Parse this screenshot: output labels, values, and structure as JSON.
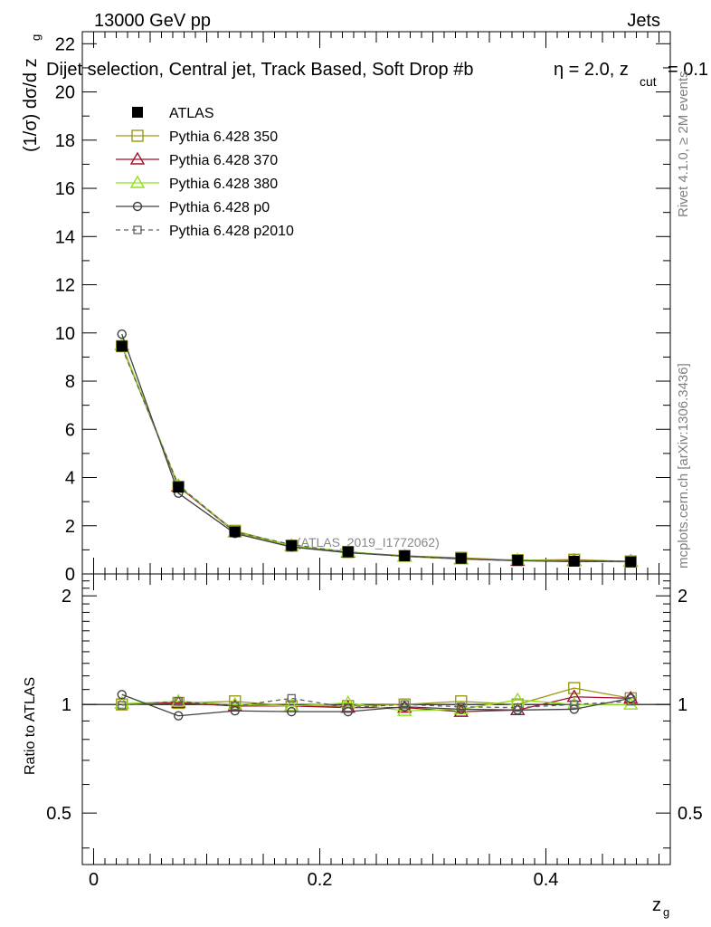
{
  "header": {
    "left": "13000 GeV pp",
    "right": "Jets"
  },
  "title": "Dijet selection, Central jet, Track Based, Soft Drop #b",
  "title_params": {
    "eta": "η = 2.0, z",
    "cut_sub": "cut",
    "zcut_value": "= 0.1"
  },
  "watermarks": {
    "rivet": "Rivet 4.1.0, ≥ 2M events",
    "mcplots": "mcplots.cern.ch [arXiv:1306.3436]",
    "analysis": "(ATLAS_2019_I1772062)"
  },
  "chart_data": [
    {
      "type": "line",
      "panel": "main",
      "ylabel": "(1/σ) dσ/d z",
      "ylabel_sub": "g",
      "ylim": [
        0,
        22.5
      ],
      "yticks": [
        0,
        2,
        4,
        6,
        8,
        10,
        12,
        14,
        16,
        18,
        20,
        22
      ],
      "ytick_labels": [
        "0",
        "2",
        "4",
        "6",
        "8",
        "10",
        "12",
        "14",
        "16",
        "18",
        "20",
        "22"
      ],
      "x": [
        0.025,
        0.075,
        0.125,
        0.175,
        0.225,
        0.275,
        0.325,
        0.375,
        0.425,
        0.475
      ],
      "series": [
        {
          "name": "ATLAS",
          "color": "#000000",
          "marker": "filled-square",
          "line": "none",
          "values": [
            9.45,
            3.6,
            1.75,
            1.18,
            0.92,
            0.75,
            0.65,
            0.57,
            0.53,
            0.5
          ]
        },
        {
          "name": "Pythia 6.428 350",
          "color": "#9a9a1a",
          "marker": "open-square",
          "line": "solid",
          "values": [
            9.45,
            3.62,
            1.79,
            1.17,
            0.91,
            0.75,
            0.67,
            0.57,
            0.59,
            0.52
          ]
        },
        {
          "name": "Pythia 6.428 370",
          "color": "#a50f2d",
          "marker": "open-triangle",
          "line": "solid",
          "values": [
            9.5,
            3.63,
            1.74,
            1.17,
            0.9,
            0.73,
            0.62,
            0.55,
            0.55,
            0.52
          ]
        },
        {
          "name": "Pythia 6.428 380",
          "color": "#90e020",
          "marker": "open-triangle",
          "line": "solid",
          "values": [
            9.5,
            3.67,
            1.75,
            1.17,
            0.93,
            0.72,
            0.63,
            0.58,
            0.53,
            0.5
          ]
        },
        {
          "name": "Pythia 6.428 p0",
          "color": "#404040",
          "marker": "open-circle",
          "line": "solid",
          "values": [
            9.95,
            3.35,
            1.68,
            1.12,
            0.88,
            0.74,
            0.63,
            0.55,
            0.51,
            0.52
          ]
        },
        {
          "name": "Pythia 6.428 p2010",
          "color": "#606060",
          "marker": "open-square-small",
          "line": "dashed",
          "values": [
            9.4,
            3.68,
            1.74,
            1.22,
            0.9,
            0.75,
            0.64,
            0.56,
            0.53,
            0.51
          ]
        }
      ]
    },
    {
      "type": "line",
      "panel": "ratio",
      "xlabel": "z",
      "xlabel_sub": "g",
      "ylabel": "Ratio to ATLAS",
      "ylim": [
        0.36,
        2.3
      ],
      "yticks": [
        0.5,
        1,
        2
      ],
      "ytick_labels": [
        "0.5",
        "1",
        "2"
      ],
      "xlim": [
        -0.01,
        0.51
      ],
      "xticks": [
        0,
        0.2,
        0.4
      ],
      "xtick_labels": [
        "0",
        "0.2",
        "0.4"
      ],
      "x": [
        0.025,
        0.075,
        0.125,
        0.175,
        0.225,
        0.275,
        0.325,
        0.375,
        0.425,
        0.475
      ],
      "series": [
        {
          "name": "Pythia 6.428 350",
          "values": [
            1.0,
            1.01,
            1.02,
            0.99,
            0.99,
            1.0,
            1.02,
            1.0,
            1.11,
            1.04
          ]
        },
        {
          "name": "Pythia 6.428 370",
          "values": [
            1.005,
            1.01,
            0.99,
            0.99,
            0.98,
            0.98,
            0.955,
            0.965,
            1.05,
            1.04
          ]
        },
        {
          "name": "Pythia 6.428 380",
          "values": [
            1.005,
            1.02,
            1.0,
            0.99,
            1.01,
            0.96,
            0.97,
            1.03,
            1.0,
            1.0
          ]
        },
        {
          "name": "Pythia 6.428 p0",
          "values": [
            1.065,
            0.93,
            0.96,
            0.955,
            0.955,
            0.985,
            0.97,
            0.965,
            0.97,
            1.04
          ]
        },
        {
          "name": "Pythia 6.428 p2010",
          "values": [
            0.995,
            1.02,
            0.99,
            1.04,
            0.98,
            1.0,
            0.985,
            0.98,
            1.0,
            1.02
          ]
        }
      ]
    }
  ]
}
